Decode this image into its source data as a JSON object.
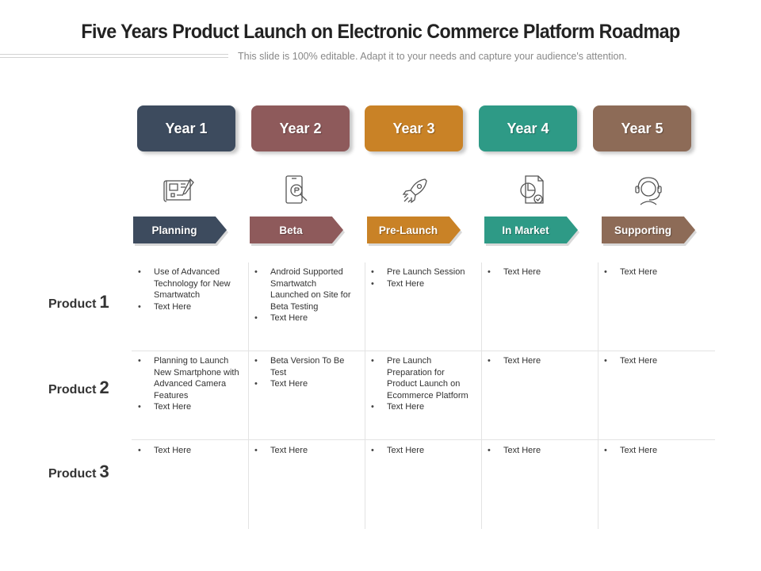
{
  "title": "Five Years Product Launch on Electronic Commerce Platform Roadmap",
  "subtitle": "This slide is 100% editable. Adapt it to your needs and capture your audience's attention.",
  "years": [
    {
      "label": "Year 1",
      "color": "#3d4b5e"
    },
    {
      "label": "Year 2",
      "color": "#8e5a5b"
    },
    {
      "label": "Year 3",
      "color": "#c98226"
    },
    {
      "label": "Year 4",
      "color": "#2e9a86"
    },
    {
      "label": "Year 5",
      "color": "#8d6b57"
    }
  ],
  "icons": [
    "blueprint-icon",
    "smartphone-search-icon",
    "rocket-icon",
    "pie-chart-report-icon",
    "headset-support-icon"
  ],
  "phases": [
    {
      "label": "Planning",
      "color": "#3d4b5e"
    },
    {
      "label": "Beta",
      "color": "#8e5a5b"
    },
    {
      "label": "Pre-Launch",
      "color": "#c98226"
    },
    {
      "label": "In Market",
      "color": "#2e9a86"
    },
    {
      "label": "Supporting",
      "color": "#8d6b57"
    }
  ],
  "products": [
    {
      "label": "Product",
      "num": "1"
    },
    {
      "label": "Product",
      "num": "2"
    },
    {
      "label": "Product",
      "num": "3"
    }
  ],
  "cells": [
    [
      [
        "Use of Advanced Technology for New Smartwatch",
        "Text Here"
      ],
      [
        "Android Supported Smartwatch Launched on Site for Beta Testing",
        "Text Here"
      ],
      [
        "Pre Launch Session",
        "Text Here"
      ],
      [
        "Text Here"
      ],
      [
        "Text Here"
      ]
    ],
    [
      [
        "Planning to Launch New Smartphone with Advanced Camera Features",
        "Text Here"
      ],
      [
        "Beta Version To Be Test",
        "Text Here"
      ],
      [
        "Pre Launch Preparation for Product Launch on Ecommerce Platform",
        "Text Here"
      ],
      [
        "Text Here"
      ],
      [
        "Text Here"
      ]
    ],
    [
      [
        "Text Here"
      ],
      [
        "Text Here"
      ],
      [
        "Text Here"
      ],
      [
        "Text Here"
      ],
      [
        "Text Here"
      ]
    ]
  ]
}
